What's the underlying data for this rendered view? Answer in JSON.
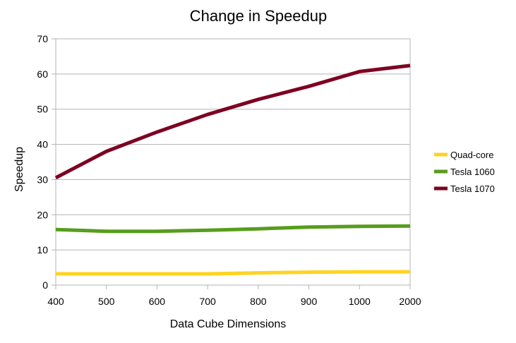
{
  "chart_data": {
    "type": "line",
    "title": "Change in Speedup",
    "xlabel": "Data Cube Dimensions",
    "ylabel": "Speedup",
    "categories": [
      "400",
      "500",
      "600",
      "700",
      "800",
      "900",
      "1000",
      "2000"
    ],
    "ylim": [
      0,
      70
    ],
    "yticks": [
      "0",
      "10",
      "20",
      "30",
      "40",
      "50",
      "60",
      "70"
    ],
    "grid": "horizontal",
    "legend_position": "right",
    "series": [
      {
        "name": "Quad-core",
        "color": "#ffd320",
        "values": [
          3.2,
          3.2,
          3.2,
          3.2,
          3.5,
          3.7,
          3.8,
          3.8
        ]
      },
      {
        "name": "Tesla 1060",
        "color": "#579d1c",
        "values": [
          15.8,
          15.3,
          15.3,
          15.6,
          16.0,
          16.5,
          16.7,
          16.8
        ]
      },
      {
        "name": "Tesla 1070",
        "color": "#7e0021",
        "values": [
          30.5,
          38.0,
          43.5,
          48.5,
          52.8,
          56.5,
          60.7,
          62.4
        ]
      }
    ]
  }
}
